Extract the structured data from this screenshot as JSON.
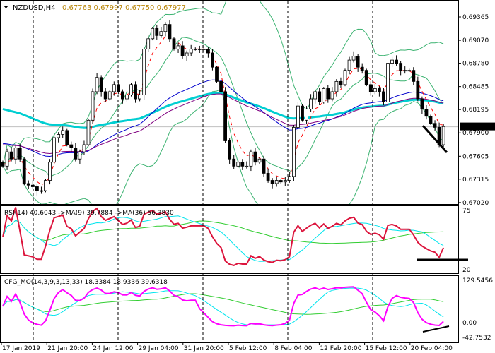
{
  "header": {
    "symbol": "NZDUSD,H4",
    "ohlc": "0.67763 0.67997 0.67750 0.67977"
  },
  "rsi_panel": {
    "label": "RSI(14) 40.6043  ->MA(9) 39.7884  ->MA(36) 56.3830",
    "levels": [
      "75",
      "20"
    ]
  },
  "cfg_panel": {
    "label": "CFG_MO(14,3,9,3,13,33) 18.3384 18.9336 39.6318",
    "levels": [
      "129.5456",
      "0.00",
      "-42.7532"
    ]
  },
  "colors": {
    "bull_candle": "#ffffff",
    "bear_candle": "#000000",
    "bollinger": "#3cb371",
    "fast_ma": "#ff0000",
    "ma_blue": "#0000cd",
    "ma_purple": "#800080",
    "ma_long": "#00ced1",
    "rsi": "#dc143c",
    "rsi_ma_fast": "#00e5ee",
    "rsi_ma_slow": "#32cd32",
    "cfg_main": "#ff00ff",
    "trendline": "#000000"
  },
  "chart_data": {
    "type": "candlestick",
    "symbol": "NZDUSD",
    "timeframe": "H4",
    "current_price": "0.67977",
    "price_axis_ticks": [
      "0.69365",
      "0.69070",
      "0.68780",
      "0.68485",
      "0.68195",
      "0.67900",
      "0.67605",
      "0.67315",
      "0.67020"
    ],
    "ylim": [
      0.67,
      0.6963
    ],
    "time_axis_ticks": [
      "17 Jan 2019",
      "21 Jan 20:00",
      "24 Jan 12:00",
      "29 Jan 04:00",
      "31 Jan 20:00",
      "5 Feb 12:00",
      "8 Feb 04:00",
      "12 Feb 20:00",
      "15 Feb 12:00",
      "20 Feb 04:00"
    ],
    "grid": "vertical dashed separators",
    "approx_closes": [
      0.6748,
      0.6766,
      0.6757,
      0.6771,
      0.6757,
      0.6726,
      0.6724,
      0.6722,
      0.6717,
      0.6717,
      0.673,
      0.6753,
      0.6784,
      0.6788,
      0.6793,
      0.6775,
      0.6771,
      0.6757,
      0.6766,
      0.6775,
      0.6806,
      0.6842,
      0.686,
      0.6842,
      0.6833,
      0.6842,
      0.6851,
      0.6842,
      0.6833,
      0.6838,
      0.6851,
      0.6833,
      0.6838,
      0.6896,
      0.6909,
      0.6922,
      0.6913,
      0.6918,
      0.6927,
      0.6909,
      0.6896,
      0.69,
      0.6887,
      0.6891,
      0.6896,
      0.6896,
      0.6896,
      0.6896,
      0.6891,
      0.6873,
      0.6855,
      0.6842,
      0.678,
      0.6757,
      0.6748,
      0.6753,
      0.6748,
      0.6748,
      0.6766,
      0.6753,
      0.6757,
      0.6739,
      0.673,
      0.6726,
      0.673,
      0.6728,
      0.673,
      0.6735,
      0.6797,
      0.6824,
      0.6806,
      0.682,
      0.6833,
      0.6842,
      0.6829,
      0.6846,
      0.6833,
      0.6842,
      0.6855,
      0.6851,
      0.6869,
      0.6882,
      0.6887,
      0.6873,
      0.6869,
      0.6851,
      0.6842,
      0.6846,
      0.6842,
      0.6829,
      0.6878,
      0.6882,
      0.6878,
      0.6869,
      0.6869,
      0.6869,
      0.6855,
      0.6833,
      0.682,
      0.6811,
      0.6802,
      0.6797,
      0.6775,
      0.6798
    ],
    "rsi_range": [
      20,
      75
    ],
    "cfg_range": [
      -42.7532,
      129.5456
    ]
  }
}
